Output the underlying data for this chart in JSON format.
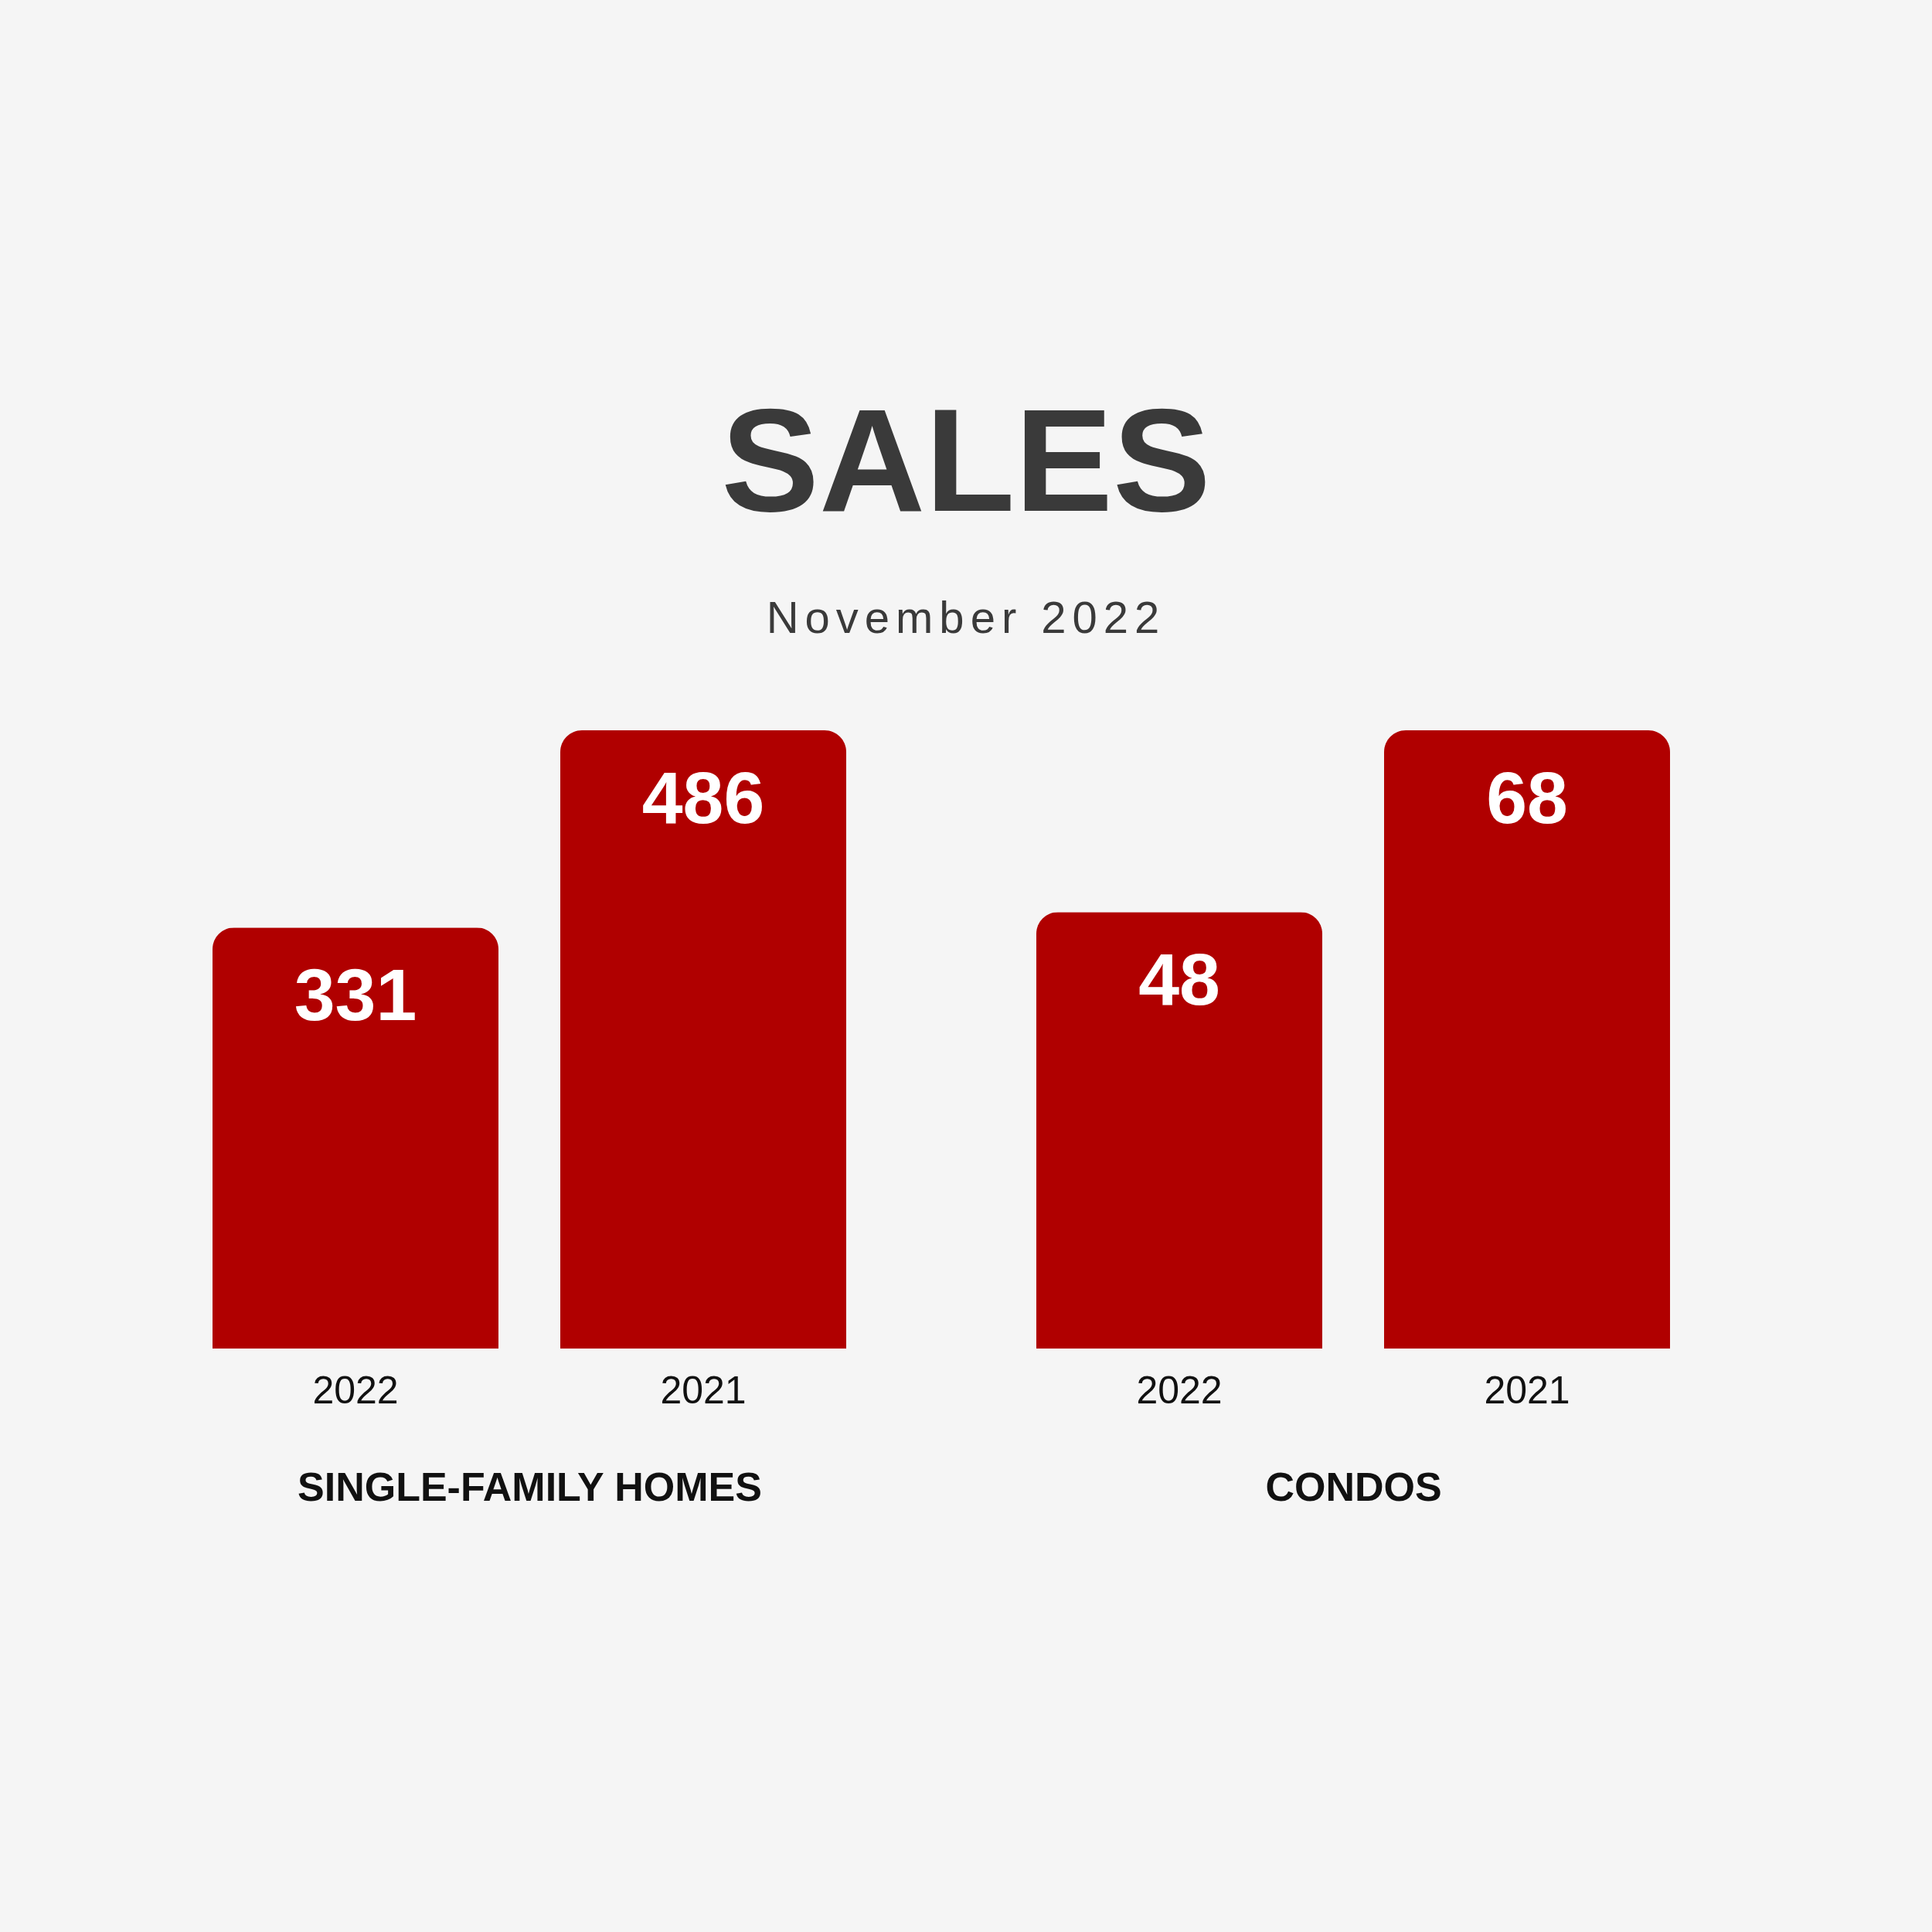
{
  "chart_data": [
    {
      "type": "bar",
      "title": "SALES",
      "subtitle": "November 2022",
      "xlabel": "SINGLE-FAMILY HOMES",
      "categories": [
        "2022",
        "2021"
      ],
      "values": [
        331,
        486
      ],
      "color": "#b00000",
      "data_labels": true
    },
    {
      "type": "bar",
      "xlabel": "CONDOS",
      "categories": [
        "2022",
        "2021"
      ],
      "values": [
        48,
        68
      ],
      "color": "#b00000",
      "data_labels": true
    }
  ]
}
